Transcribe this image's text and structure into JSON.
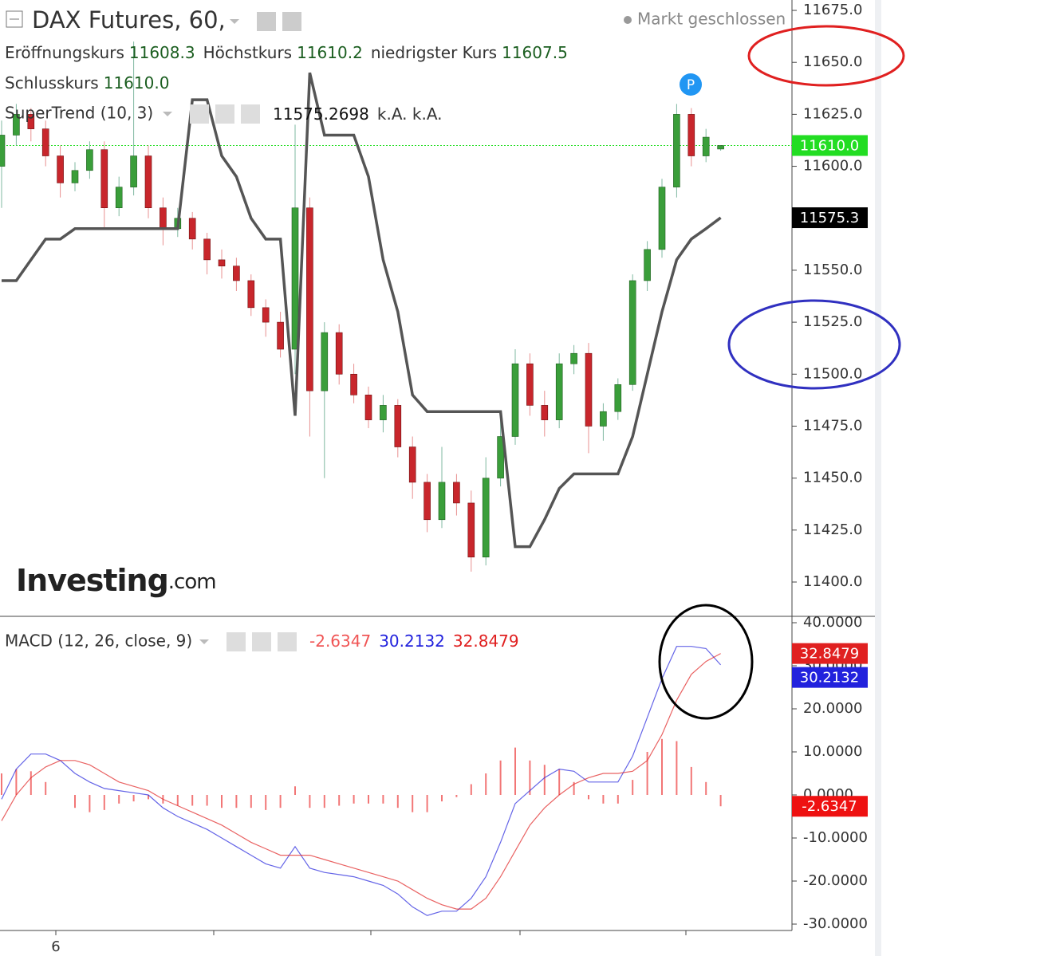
{
  "header": {
    "title": "DAX Futures, 60,",
    "status": "Markt geschlossen",
    "ohlc_legend": [
      {
        "label": "Eröffnungskurs",
        "value": "11608.3"
      },
      {
        "label": "Höchstkurs",
        "value": "11610.2"
      },
      {
        "label": "niedrigster Kurs",
        "value": "11607.5"
      },
      {
        "label": "Schlusskurs",
        "value": "11610.0"
      }
    ],
    "marker": "P",
    "logo": {
      "name": "Investing",
      "suffix": ".com"
    },
    "x_label": "6"
  },
  "chart_data": [
    {
      "type": "candlestick",
      "up_color": "#3a9e3a",
      "down_color": "#c8262c",
      "open": [
        11600,
        11615,
        11625,
        11618,
        11605,
        11592,
        11598,
        11608,
        11580,
        11590,
        11605,
        11580,
        11570,
        11575,
        11565,
        11555,
        11552,
        11545,
        11532,
        11525,
        11512,
        11580,
        11492,
        11520,
        11500,
        11490,
        11478,
        11485,
        11465,
        11448,
        11430,
        11448,
        11438,
        11412,
        11450,
        11470,
        11505,
        11485,
        11478,
        11505,
        11510,
        11475,
        11482,
        11495,
        11545,
        11560,
        11590,
        11625,
        11605,
        11608.3
      ],
      "high": [
        11622,
        11630,
        11628,
        11622,
        11610,
        11602,
        11612,
        11612,
        11595,
        11660,
        11610,
        11585,
        11580,
        11578,
        11568,
        11560,
        11556,
        11548,
        11536,
        11530,
        11620,
        11585,
        11525,
        11524,
        11505,
        11494,
        11490,
        11488,
        11470,
        11452,
        11465,
        11452,
        11444,
        11460,
        11478,
        11512,
        11510,
        11492,
        11510,
        11514,
        11515,
        11486,
        11498,
        11548,
        11564,
        11594,
        11630,
        11628,
        11618,
        11610.2
      ],
      "low": [
        11580,
        11610,
        11612,
        11600,
        11585,
        11588,
        11594,
        11570,
        11576,
        11586,
        11575,
        11562,
        11566,
        11560,
        11548,
        11546,
        11540,
        11528,
        11518,
        11508,
        11500,
        11470,
        11450,
        11495,
        11486,
        11474,
        11472,
        11460,
        11440,
        11424,
        11426,
        11432,
        11405,
        11408,
        11446,
        11466,
        11480,
        11470,
        11474,
        11500,
        11462,
        11468,
        11478,
        11492,
        11540,
        11556,
        11585,
        11600,
        11602,
        11607.5
      ],
      "close": [
        11615,
        11625,
        11618,
        11605,
        11592,
        11598,
        11608,
        11580,
        11590,
        11605,
        11580,
        11570,
        11575,
        11565,
        11555,
        11552,
        11545,
        11532,
        11525,
        11512,
        11580,
        11492,
        11520,
        11500,
        11490,
        11478,
        11485,
        11465,
        11448,
        11430,
        11448,
        11438,
        11412,
        11450,
        11470,
        11505,
        11485,
        11478,
        11505,
        11510,
        11475,
        11482,
        11495,
        11545,
        11560,
        11590,
        11625,
        11605,
        11614,
        {
          "value": 11610,
          "label": "11610.0"
        }
      ],
      "ylim": [
        11383.5,
        11680
      ],
      "yticks": [
        {
          "value": 11400,
          "label": "11400.0"
        },
        {
          "value": 11425,
          "label": "11425.0"
        },
        {
          "value": 11450,
          "label": "11450.0"
        },
        {
          "value": 11475,
          "label": "11475.0"
        },
        {
          "value": 11500,
          "label": "11500.0"
        },
        {
          "value": 11525,
          "label": "11525.0"
        },
        {
          "value": 11550,
          "label": "11550.0"
        },
        {
          "value": 11575,
          "label": "11575.0"
        },
        {
          "value": 11600,
          "label": "11600.0"
        },
        {
          "value": 11625,
          "label": "11625.0"
        },
        {
          "value": 11650,
          "label": "11650.0"
        },
        {
          "value": 11675,
          "label": "11675.0"
        }
      ],
      "price_line_color": "#22dd22",
      "overlay": {
        "title": "SuperTrend (10, 3)",
        "color": "#555555",
        "legend_values": [
          "11575.2698",
          "k.A.  k.A."
        ],
        "badge": "11575.3",
        "values": [
          11545,
          11545,
          11555,
          11565,
          11565,
          11570,
          11570,
          11570,
          11570,
          11570,
          11570,
          11570,
          11570,
          11632,
          11632,
          11605,
          11595,
          11575,
          11565,
          11565,
          11480,
          11645,
          11615,
          11615,
          11615,
          11595,
          11555,
          11530,
          11490,
          11482,
          11482,
          11482,
          11482,
          11482,
          11482,
          11417,
          11417,
          11430,
          11445,
          11452,
          11452,
          11452,
          11452,
          11470,
          11500,
          11530,
          11555,
          11565,
          11570,
          11575.2698
        ]
      }
    },
    {
      "type": "macd",
      "title": "MACD (12, 26, close, 9)",
      "ylim": [
        -31.48,
        41.48
      ],
      "yticks": [
        {
          "value": -30,
          "label": "-30.0000"
        },
        {
          "value": -20,
          "label": "-20.0000"
        },
        {
          "value": -10,
          "label": "-10.0000"
        },
        {
          "value": 0,
          "label": "0.0000"
        },
        {
          "value": 10,
          "label": "10.0000"
        },
        {
          "value": 20,
          "label": "20.0000"
        },
        {
          "value": 30,
          "label": "30.0000"
        },
        {
          "value": 40,
          "label": "40.0000"
        }
      ],
      "series": [
        {
          "style": "histogram",
          "color": "#f05555",
          "label": "-2.6347",
          "values": [
            5,
            6,
            5.5,
            3,
            0,
            -3,
            -4,
            -3.5,
            -2,
            -1.5,
            -1,
            -2,
            -2.5,
            -2.5,
            -2.5,
            -3,
            -3,
            -3,
            -3.5,
            -3,
            2,
            -3,
            -3,
            -2.5,
            -2,
            -2,
            -2,
            -3,
            -4,
            -4,
            -1.5,
            -0.5,
            2.5,
            5,
            8,
            11,
            8,
            7,
            6,
            3,
            -1,
            -2,
            -2,
            3.5,
            10,
            13,
            12.5,
            6.5,
            3,
            -2.6347
          ]
        },
        {
          "style": "line",
          "color": "#2222dd",
          "label": "30.2132",
          "values": [
            -1,
            6,
            9.5,
            9.5,
            8,
            5,
            3,
            1.5,
            1,
            0.5,
            0,
            -3,
            -5,
            -6.5,
            -8,
            -10,
            -12,
            -14,
            -16,
            -17,
            -12,
            -17,
            -18,
            -18.5,
            -19,
            -20,
            -21,
            -23,
            -26,
            -28,
            -27,
            -27,
            -24,
            -19,
            -11,
            -2,
            1,
            4,
            6,
            5.5,
            3,
            3,
            3,
            9,
            18,
            27,
            34.5,
            34.5,
            34,
            30.2132
          ]
        },
        {
          "style": "line",
          "color": "#e02020",
          "label": "32.8479",
          "values": [
            -6,
            0,
            4,
            6.5,
            8,
            8,
            7,
            5,
            3,
            2,
            1,
            -1,
            -2.5,
            -4,
            -5.5,
            -7,
            -9,
            -11,
            -12.5,
            -14,
            -14,
            -14,
            -15,
            -16,
            -17,
            -18,
            -19,
            -20,
            -22,
            -24,
            -25.5,
            -26.5,
            -26.5,
            -24,
            -19,
            -13,
            -7,
            -3,
            0,
            2.5,
            4,
            5,
            5,
            5.5,
            8,
            14,
            22,
            28,
            31,
            32.8479
          ]
        }
      ]
    }
  ]
}
